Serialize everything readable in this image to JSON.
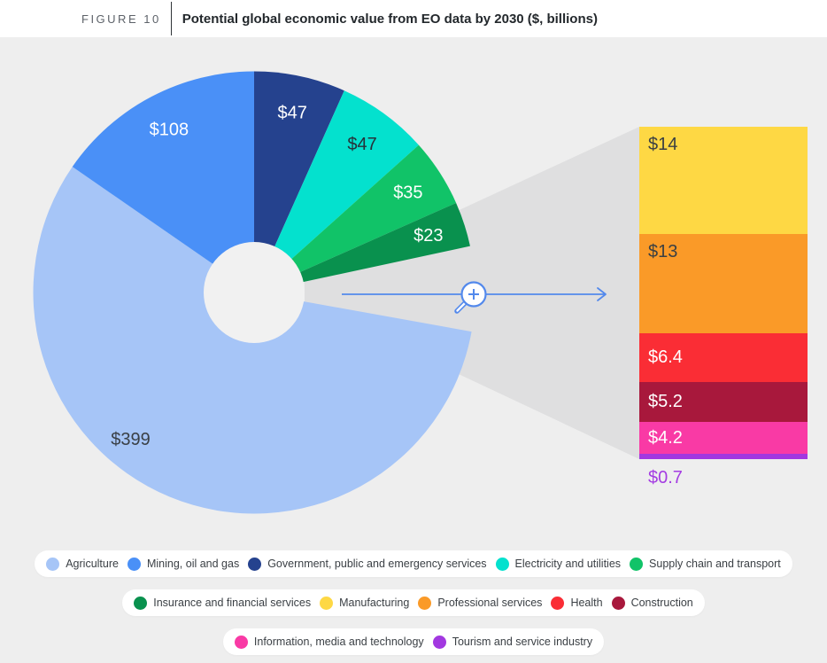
{
  "figure": {
    "label": "FIGURE 10",
    "title": "Potential global economic value from EO data by 2030 ($, billions)"
  },
  "chart_data": {
    "type": "pie",
    "subtype": "donut-with-zoomed-stacked-bar",
    "title": "Potential global economic value from EO data by 2030 ($, billions)",
    "units": "$, billions",
    "donut": {
      "slices": [
        {
          "id": "government",
          "name": "Government, public and emergency services",
          "value": 47,
          "label": "$47",
          "color": "#25428e",
          "label_color": "#ffffff"
        },
        {
          "id": "electricity",
          "name": "Electricity and utilities",
          "value": 47,
          "label": "$47",
          "color": "#04e1ce",
          "label_color": "#26323a"
        },
        {
          "id": "supply-chain",
          "name": "Supply chain and transport",
          "value": 35,
          "label": "$35",
          "color": "#11c368",
          "label_color": "#ffffff"
        },
        {
          "id": "insurance",
          "name": "Insurance and financial services",
          "value": 23,
          "label": "$23",
          "color": "#09914e",
          "label_color": "#ffffff"
        },
        {
          "id": "zoom-gap",
          "name": "Zoomed-out segments (shown in bar)",
          "value": null
        },
        {
          "id": "agriculture",
          "name": "Agriculture",
          "value": 399,
          "label": "$399",
          "color": "#a6c5f7",
          "label_color": "#3a4046"
        },
        {
          "id": "mining",
          "name": "Mining, oil and gas",
          "value": 108,
          "label": "$108",
          "color": "#4a90f7",
          "label_color": "#ffffff"
        }
      ]
    },
    "zoom_bar": {
      "segments": [
        {
          "id": "manufacturing",
          "name": "Manufacturing",
          "value": 14,
          "label": "$14",
          "color": "#fed844",
          "label_color": "#3b4043",
          "label_inside": true
        },
        {
          "id": "professional-services",
          "name": "Professional services",
          "value": 13,
          "label": "$13",
          "color": "#fa9a28",
          "label_color": "#3b4043",
          "label_inside": true
        },
        {
          "id": "health",
          "name": "Health",
          "value": 6.4,
          "label": "$6.4",
          "color": "#fa2d35",
          "label_color": "#ffffff",
          "label_inside": true
        },
        {
          "id": "construction",
          "name": "Construction",
          "value": 5.2,
          "label": "$5.2",
          "color": "#a8183c",
          "label_color": "#ffffff",
          "label_inside": true
        },
        {
          "id": "information",
          "name": "Information, media and technology",
          "value": 4.2,
          "label": "$4.2",
          "color": "#f93aa5",
          "label_color": "#ffffff",
          "label_inside": true
        },
        {
          "id": "tourism",
          "name": "Tourism and service industry",
          "value": 0.7,
          "label": "$0.7",
          "color": "#a238e0",
          "label_color": "#a43ce2",
          "label_inside": false
        }
      ]
    },
    "legend_rows": [
      [
        {
          "id": "agriculture",
          "label": "Agriculture",
          "color": "#a6c5f7"
        },
        {
          "id": "mining",
          "label": "Mining, oil and gas",
          "color": "#4a90f7"
        },
        {
          "id": "government",
          "label": "Government, public and emergency services",
          "color": "#25428e"
        },
        {
          "id": "electricity",
          "label": "Electricity and utilities",
          "color": "#04e1ce"
        },
        {
          "id": "supply-chain",
          "label": "Supply chain and transport",
          "color": "#11c368"
        }
      ],
      [
        {
          "id": "insurance",
          "label": "Insurance and financial services",
          "color": "#09914e"
        },
        {
          "id": "manufacturing",
          "label": "Manufacturing",
          "color": "#fed844"
        },
        {
          "id": "professional-services",
          "label": "Professional services",
          "color": "#fa9a28"
        },
        {
          "id": "health",
          "label": "Health",
          "color": "#fa2d35"
        },
        {
          "id": "construction",
          "label": "Construction",
          "color": "#a8183c"
        }
      ],
      [
        {
          "id": "information",
          "label": "Information, media and technology",
          "color": "#f93aa5"
        },
        {
          "id": "tourism",
          "label": "Tourism and service industry",
          "color": "#a238e0"
        }
      ]
    ]
  }
}
